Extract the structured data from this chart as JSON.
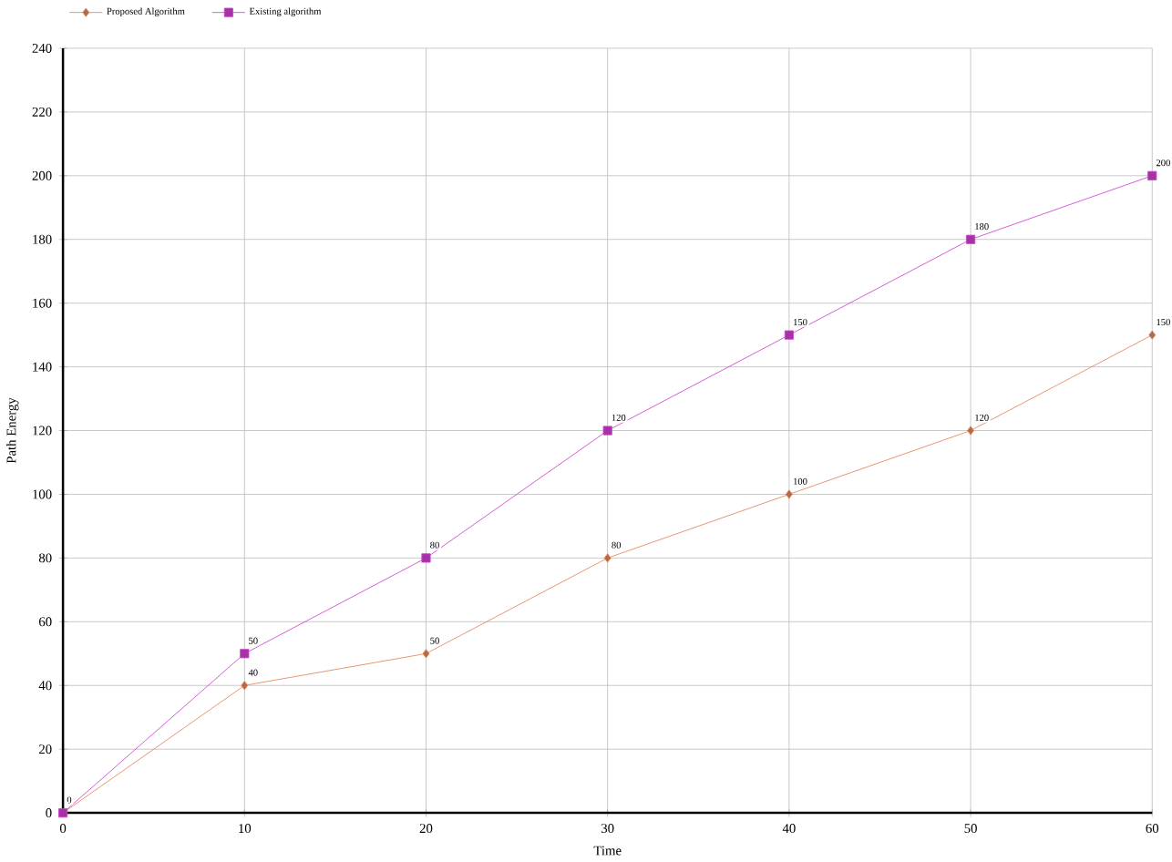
{
  "chart_data": {
    "type": "line",
    "xlabel": "Time",
    "ylabel": "Path Energy",
    "x": [
      0,
      10,
      20,
      30,
      40,
      50,
      60
    ],
    "series": [
      {
        "name": "Proposed Algorithm",
        "color": "#e0855a",
        "marker": "diamond",
        "values": [
          0,
          40,
          50,
          80,
          100,
          120,
          150
        ],
        "value_labels": [
          "0",
          "40",
          "50",
          "80",
          "100",
          "120",
          "150"
        ]
      },
      {
        "name": "Existing algorithm",
        "color": "#d040d0",
        "marker": "square",
        "values": [
          0,
          50,
          80,
          120,
          150,
          180,
          200
        ],
        "value_labels": [
          null,
          "50",
          "80",
          "120",
          "150",
          "180",
          "200"
        ]
      }
    ],
    "xlim": [
      0,
      60
    ],
    "xticks": [
      0,
      10,
      20,
      30,
      40,
      50,
      60
    ],
    "ylim": [
      0,
      240
    ],
    "yticks": [
      0,
      20,
      40,
      60,
      80,
      100,
      120,
      140,
      160,
      180,
      200,
      220,
      240
    ],
    "grid": true,
    "legend": "top left"
  }
}
